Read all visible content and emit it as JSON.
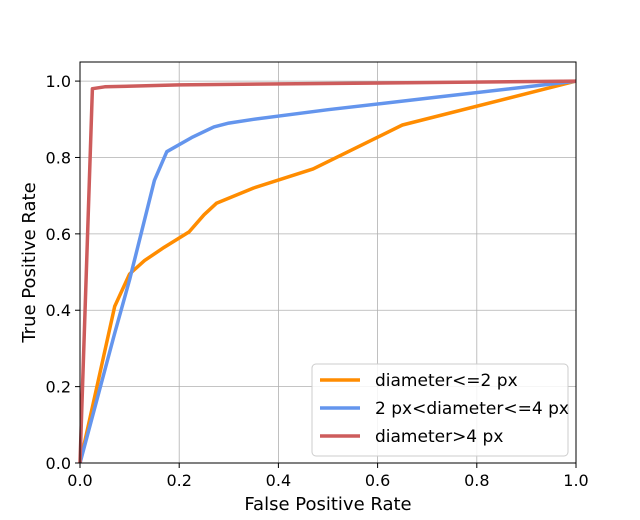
{
  "chart_data": {
    "type": "line",
    "xlabel": "False Positive Rate",
    "ylabel": "True Positive Rate",
    "xlim": [
      0.0,
      1.0
    ],
    "ylim": [
      0.0,
      1.05
    ],
    "xticks": [
      "0.0",
      "0.2",
      "0.4",
      "0.6",
      "0.8",
      "1.0"
    ],
    "yticks": [
      "0.0",
      "0.2",
      "0.4",
      "0.6",
      "0.8",
      "1.0"
    ],
    "grid": true,
    "legend_position": "lower-right",
    "series": [
      {
        "name": "diameter<=2 px",
        "color": "#ff8c00",
        "x": [
          0.0,
          0.07,
          0.1,
          0.13,
          0.17,
          0.22,
          0.25,
          0.275,
          0.35,
          0.47,
          0.65,
          1.0
        ],
        "y": [
          0.0,
          0.41,
          0.495,
          0.53,
          0.565,
          0.605,
          0.65,
          0.68,
          0.72,
          0.77,
          0.885,
          1.0
        ]
      },
      {
        "name": "2 px<diameter<=4 px",
        "color": "#6495ed",
        "x": [
          0.0,
          0.07,
          0.1,
          0.15,
          0.175,
          0.225,
          0.27,
          0.3,
          0.35,
          0.5,
          0.7,
          1.0
        ],
        "y": [
          0.0,
          0.34,
          0.48,
          0.74,
          0.815,
          0.852,
          0.88,
          0.89,
          0.9,
          0.925,
          0.955,
          1.0
        ]
      },
      {
        "name": "diameter>4 px",
        "color": "#cd5c5c",
        "x": [
          0.0,
          0.025,
          0.05,
          0.2,
          1.0
        ],
        "y": [
          0.0,
          0.98,
          0.985,
          0.99,
          1.0
        ]
      }
    ]
  }
}
